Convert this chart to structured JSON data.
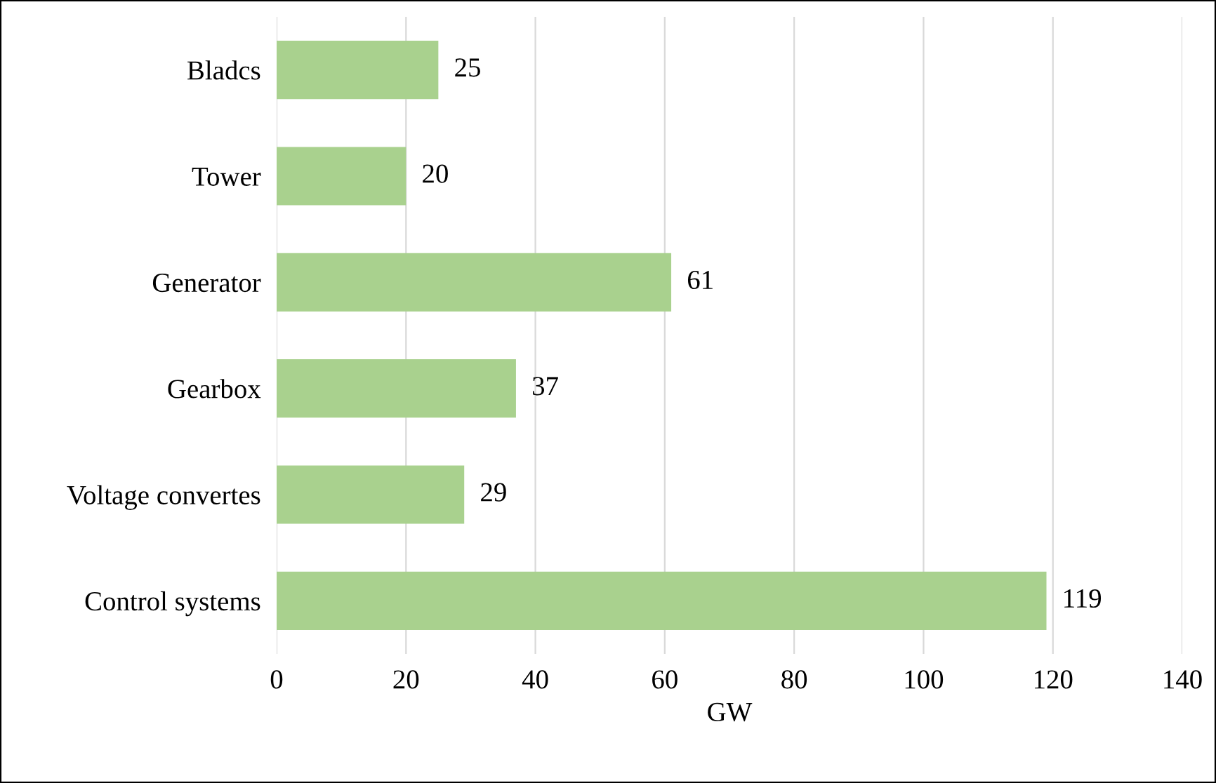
{
  "chart_data": {
    "type": "bar",
    "orientation": "horizontal",
    "xlabel": "GW",
    "categories": [
      "Bladcs",
      "Tower",
      "Generator",
      "Gearbox",
      "Voltage convertes",
      "Control systems"
    ],
    "values": [
      25,
      20,
      61,
      37,
      29,
      119
    ],
    "color": "#a9d18e",
    "xlim": [
      0,
      140
    ],
    "xticks": [
      0,
      20,
      40,
      60,
      80,
      100,
      120,
      140
    ],
    "grid": "x",
    "data_labels": true
  }
}
